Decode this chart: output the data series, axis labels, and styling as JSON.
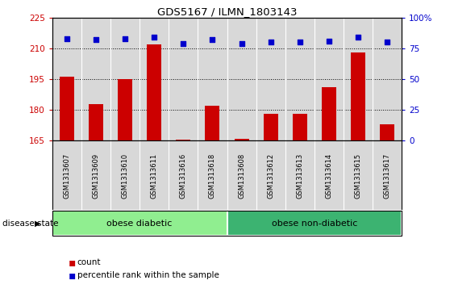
{
  "title": "GDS5167 / ILMN_1803143",
  "samples": [
    "GSM1313607",
    "GSM1313609",
    "GSM1313610",
    "GSM1313611",
    "GSM1313616",
    "GSM1313618",
    "GSM1313608",
    "GSM1313612",
    "GSM1313613",
    "GSM1313614",
    "GSM1313615",
    "GSM1313617"
  ],
  "counts": [
    196,
    183,
    195,
    212,
    165.5,
    182,
    165.8,
    178,
    178,
    191,
    208,
    173
  ],
  "percentiles": [
    83,
    82,
    83,
    84,
    79,
    82,
    79,
    80,
    80,
    81,
    84,
    80
  ],
  "ylim_left": [
    165,
    225
  ],
  "ylim_right": [
    0,
    100
  ],
  "yticks_left": [
    165,
    180,
    195,
    210,
    225
  ],
  "yticks_right": [
    0,
    25,
    50,
    75,
    100
  ],
  "groups": [
    {
      "label": "obese diabetic",
      "start": 0,
      "end": 6,
      "color": "#90ee90"
    },
    {
      "label": "obese non-diabetic",
      "start": 6,
      "end": 12,
      "color": "#3cb371"
    }
  ],
  "bar_color": "#cc0000",
  "dot_color": "#0000cc",
  "bg_color": "#d8d8d8",
  "grid_color": "#000000",
  "disease_state_label": "disease state",
  "legend_count_label": "count",
  "legend_percentile_label": "percentile rank within the sample",
  "fig_width": 5.63,
  "fig_height": 3.63
}
